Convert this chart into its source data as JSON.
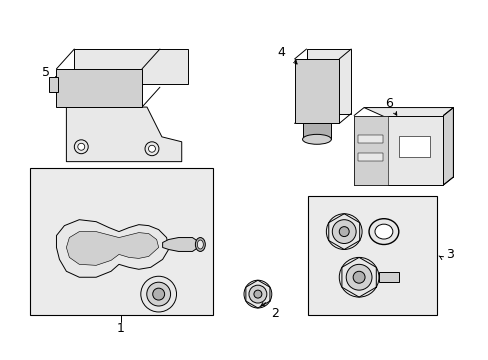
{
  "background_color": "#ffffff",
  "line_color": "#000000",
  "fill_light": "#e8e8e8",
  "fill_mid": "#d0d0d0",
  "fill_dark": "#b0b0b0",
  "box_fill": "#ebebeb",
  "figsize": [
    4.89,
    3.6
  ],
  "dpi": 100
}
